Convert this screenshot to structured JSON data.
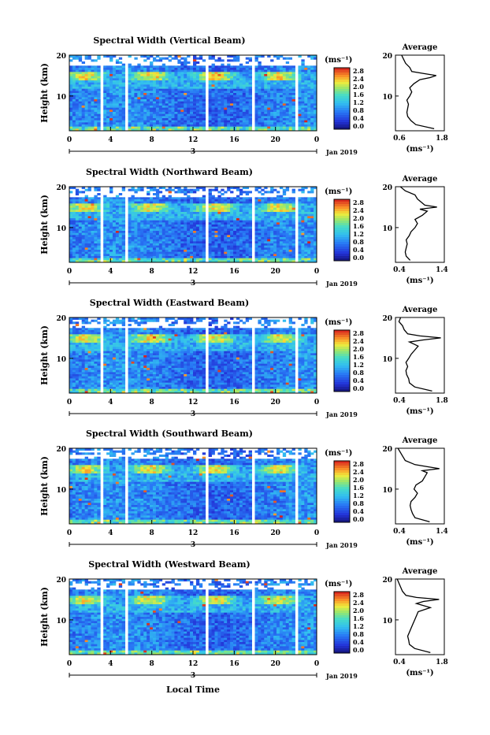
{
  "figure": {
    "ylabel": "Height (km)",
    "xlabel": "Local Time",
    "date_label": "Jan 2019",
    "day_label": "3",
    "x_ticks": [
      "0",
      "4",
      "8",
      "12",
      "16",
      "20",
      "0"
    ],
    "y_ticks": [
      "20",
      "10"
    ],
    "cbar_unit": "(ms⁻¹)",
    "cbar_ticks": [
      "2.8",
      "2.4",
      "2.0",
      "1.6",
      "1.2",
      "0.8",
      "0.4",
      "0.0"
    ],
    "avg_title": "Average",
    "avg_unit": "(ms⁻¹)",
    "colors": {
      "axis": "#000000",
      "gap": "#ffffff",
      "low": "#2a3bd6",
      "high": "#d71d1d"
    }
  },
  "chart_data": [
    {
      "type": "heatmap",
      "title": "Spectral Width (Vertical Beam)",
      "xlim": [
        0,
        24
      ],
      "ylim": [
        1.5,
        20
      ],
      "data_gaps_hours": [
        [
          3.0,
          3.3
        ],
        [
          5.3,
          5.8
        ],
        [
          13.2,
          13.5
        ],
        [
          17.6,
          17.9
        ],
        [
          21.8,
          22.1
        ]
      ],
      "profile": {
        "xlim": [
          0.6,
          1.8
        ],
        "xticks": [
          "0.6",
          "1.8"
        ],
        "height_km": [
          2,
          3,
          4,
          5,
          6,
          7,
          8,
          9,
          10,
          11,
          12,
          13,
          14,
          14.5,
          15,
          15.5,
          16,
          17,
          18,
          19,
          20
        ],
        "width": [
          1.55,
          1.1,
          0.98,
          0.9,
          0.88,
          0.9,
          0.92,
          0.88,
          0.95,
          1.0,
          0.95,
          1.05,
          1.2,
          1.45,
          1.6,
          1.3,
          1.0,
          0.95,
          0.85,
          0.8,
          0.75
        ]
      }
    },
    {
      "type": "heatmap",
      "title": "Spectral Width (Northward Beam)",
      "xlim": [
        0,
        24
      ],
      "ylim": [
        1.5,
        20
      ],
      "data_gaps_hours": [
        [
          3.0,
          3.3
        ],
        [
          5.3,
          5.8
        ],
        [
          13.2,
          13.5
        ],
        [
          17.6,
          17.9
        ],
        [
          21.8,
          22.1
        ]
      ],
      "profile": {
        "xlim": [
          0.4,
          1.4
        ],
        "xticks": [
          "0.4",
          "1.4"
        ],
        "height_km": [
          2,
          3,
          4,
          5,
          6,
          7,
          8,
          9,
          10,
          11,
          12,
          13,
          14,
          14.5,
          15,
          15.5,
          16,
          17,
          18,
          19,
          20
        ],
        "width": [
          0.7,
          0.62,
          0.6,
          0.62,
          0.64,
          0.62,
          0.68,
          0.72,
          0.8,
          0.85,
          0.8,
          0.95,
          1.05,
          0.9,
          1.25,
          1.0,
          0.95,
          0.85,
          0.8,
          0.6,
          0.5
        ]
      }
    },
    {
      "type": "heatmap",
      "title": "Spectral Width (Eastward Beam)",
      "xlim": [
        0,
        24
      ],
      "ylim": [
        1.5,
        20
      ],
      "data_gaps_hours": [
        [
          3.0,
          3.3
        ],
        [
          5.3,
          5.8
        ],
        [
          13.2,
          13.5
        ],
        [
          17.6,
          17.9
        ],
        [
          21.8,
          22.1
        ]
      ],
      "profile": {
        "xlim": [
          0.4,
          1.8
        ],
        "xticks": [
          "0.4",
          "1.8"
        ],
        "height_km": [
          2,
          3,
          4,
          5,
          6,
          7,
          8,
          9,
          10,
          11,
          12,
          13,
          14,
          14.5,
          15,
          15.5,
          16,
          17,
          18,
          19,
          20
        ],
        "width": [
          1.45,
          0.95,
          0.8,
          0.78,
          0.72,
          0.7,
          0.75,
          0.7,
          0.78,
          0.85,
          0.95,
          1.05,
          0.8,
          1.2,
          1.7,
          1.1,
          0.75,
          0.65,
          0.6,
          0.5,
          0.55
        ]
      }
    },
    {
      "type": "heatmap",
      "title": "Spectral Width (Southward Beam)",
      "xlim": [
        0,
        24
      ],
      "ylim": [
        1.5,
        20
      ],
      "data_gaps_hours": [
        [
          3.0,
          3.3
        ],
        [
          5.3,
          5.8
        ],
        [
          13.2,
          13.5
        ],
        [
          17.6,
          17.9
        ],
        [
          21.8,
          22.1
        ]
      ],
      "profile": {
        "xlim": [
          0.4,
          1.4
        ],
        "xticks": [
          "0.4",
          "1.4"
        ],
        "height_km": [
          2,
          3,
          4,
          5,
          6,
          7,
          8,
          9,
          10,
          11,
          12,
          13,
          14,
          14.5,
          15,
          15.5,
          16,
          17,
          18,
          19,
          20
        ],
        "width": [
          1.1,
          0.8,
          0.75,
          0.72,
          0.7,
          0.72,
          0.8,
          0.85,
          0.78,
          0.82,
          0.95,
          1.0,
          1.05,
          0.95,
          1.3,
          1.05,
          0.8,
          0.6,
          0.55,
          0.5,
          0.45
        ]
      }
    },
    {
      "type": "heatmap",
      "title": "Spectral Width (Westward Beam)",
      "xlim": [
        0,
        24
      ],
      "ylim": [
        1.5,
        20
      ],
      "data_gaps_hours": [
        [
          3.0,
          3.3
        ],
        [
          5.3,
          5.8
        ],
        [
          13.2,
          13.5
        ],
        [
          17.6,
          17.9
        ],
        [
          21.8,
          22.1
        ]
      ],
      "profile": {
        "xlim": [
          0.4,
          1.8
        ],
        "xticks": [
          "0.4",
          "1.8"
        ],
        "height_km": [
          2,
          3,
          4,
          5,
          6,
          7,
          8,
          9,
          10,
          11,
          12,
          13,
          14,
          14.5,
          15,
          15.5,
          16,
          17,
          18,
          19,
          20
        ],
        "width": [
          1.4,
          0.95,
          0.8,
          0.78,
          0.75,
          0.8,
          0.85,
          0.9,
          0.95,
          1.0,
          1.05,
          1.4,
          1.0,
          1.2,
          1.65,
          1.0,
          0.7,
          0.6,
          0.55,
          0.5,
          0.45
        ]
      }
    }
  ]
}
